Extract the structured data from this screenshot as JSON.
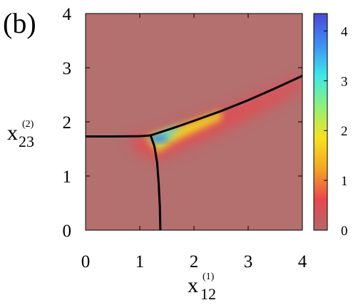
{
  "panel_label": "(b)",
  "chart_data": {
    "type": "heatmap",
    "title": "",
    "xlabel": {
      "base": "x",
      "sub": "12",
      "sup": "(1)"
    },
    "ylabel": {
      "base": "x",
      "sub": "23",
      "sup": "(2)"
    },
    "xlim": [
      0,
      4
    ],
    "ylim": [
      0,
      4
    ],
    "x_ticks": [
      "0",
      "1",
      "2",
      "3",
      "4"
    ],
    "y_ticks": [
      "0",
      "1",
      "2",
      "3",
      "4"
    ],
    "colorbar": {
      "range": [
        0,
        4.35
      ],
      "ticks": [
        "0",
        "1",
        "2",
        "3",
        "4"
      ],
      "colormap": [
        "#b4676a",
        "#e8474f",
        "#f5a623",
        "#f5e31f",
        "#8ff07a",
        "#3de8e8",
        "#3e8ef5",
        "#4a47d6"
      ]
    },
    "background_color": "#b46f6f",
    "boundary_curves": [
      {
        "name": "",
        "points": [
          [
            0,
            1.73
          ],
          [
            0.5,
            1.73
          ],
          [
            1.0,
            1.735
          ],
          [
            1.2,
            1.75
          ]
        ]
      },
      {
        "name": "",
        "points": [
          [
            1.2,
            1.75
          ],
          [
            1.6,
            1.88
          ],
          [
            2.0,
            2.02
          ],
          [
            2.5,
            2.2
          ],
          [
            3.0,
            2.4
          ],
          [
            3.5,
            2.62
          ],
          [
            4.0,
            2.85
          ]
        ]
      },
      {
        "name": "",
        "points": [
          [
            1.2,
            1.75
          ],
          [
            1.27,
            1.55
          ],
          [
            1.32,
            1.25
          ],
          [
            1.35,
            0.85
          ],
          [
            1.37,
            0.45
          ],
          [
            1.38,
            0.0
          ]
        ]
      }
    ],
    "peak_location": [
      1.35,
      1.7
    ],
    "peak_value": 4.3
  }
}
